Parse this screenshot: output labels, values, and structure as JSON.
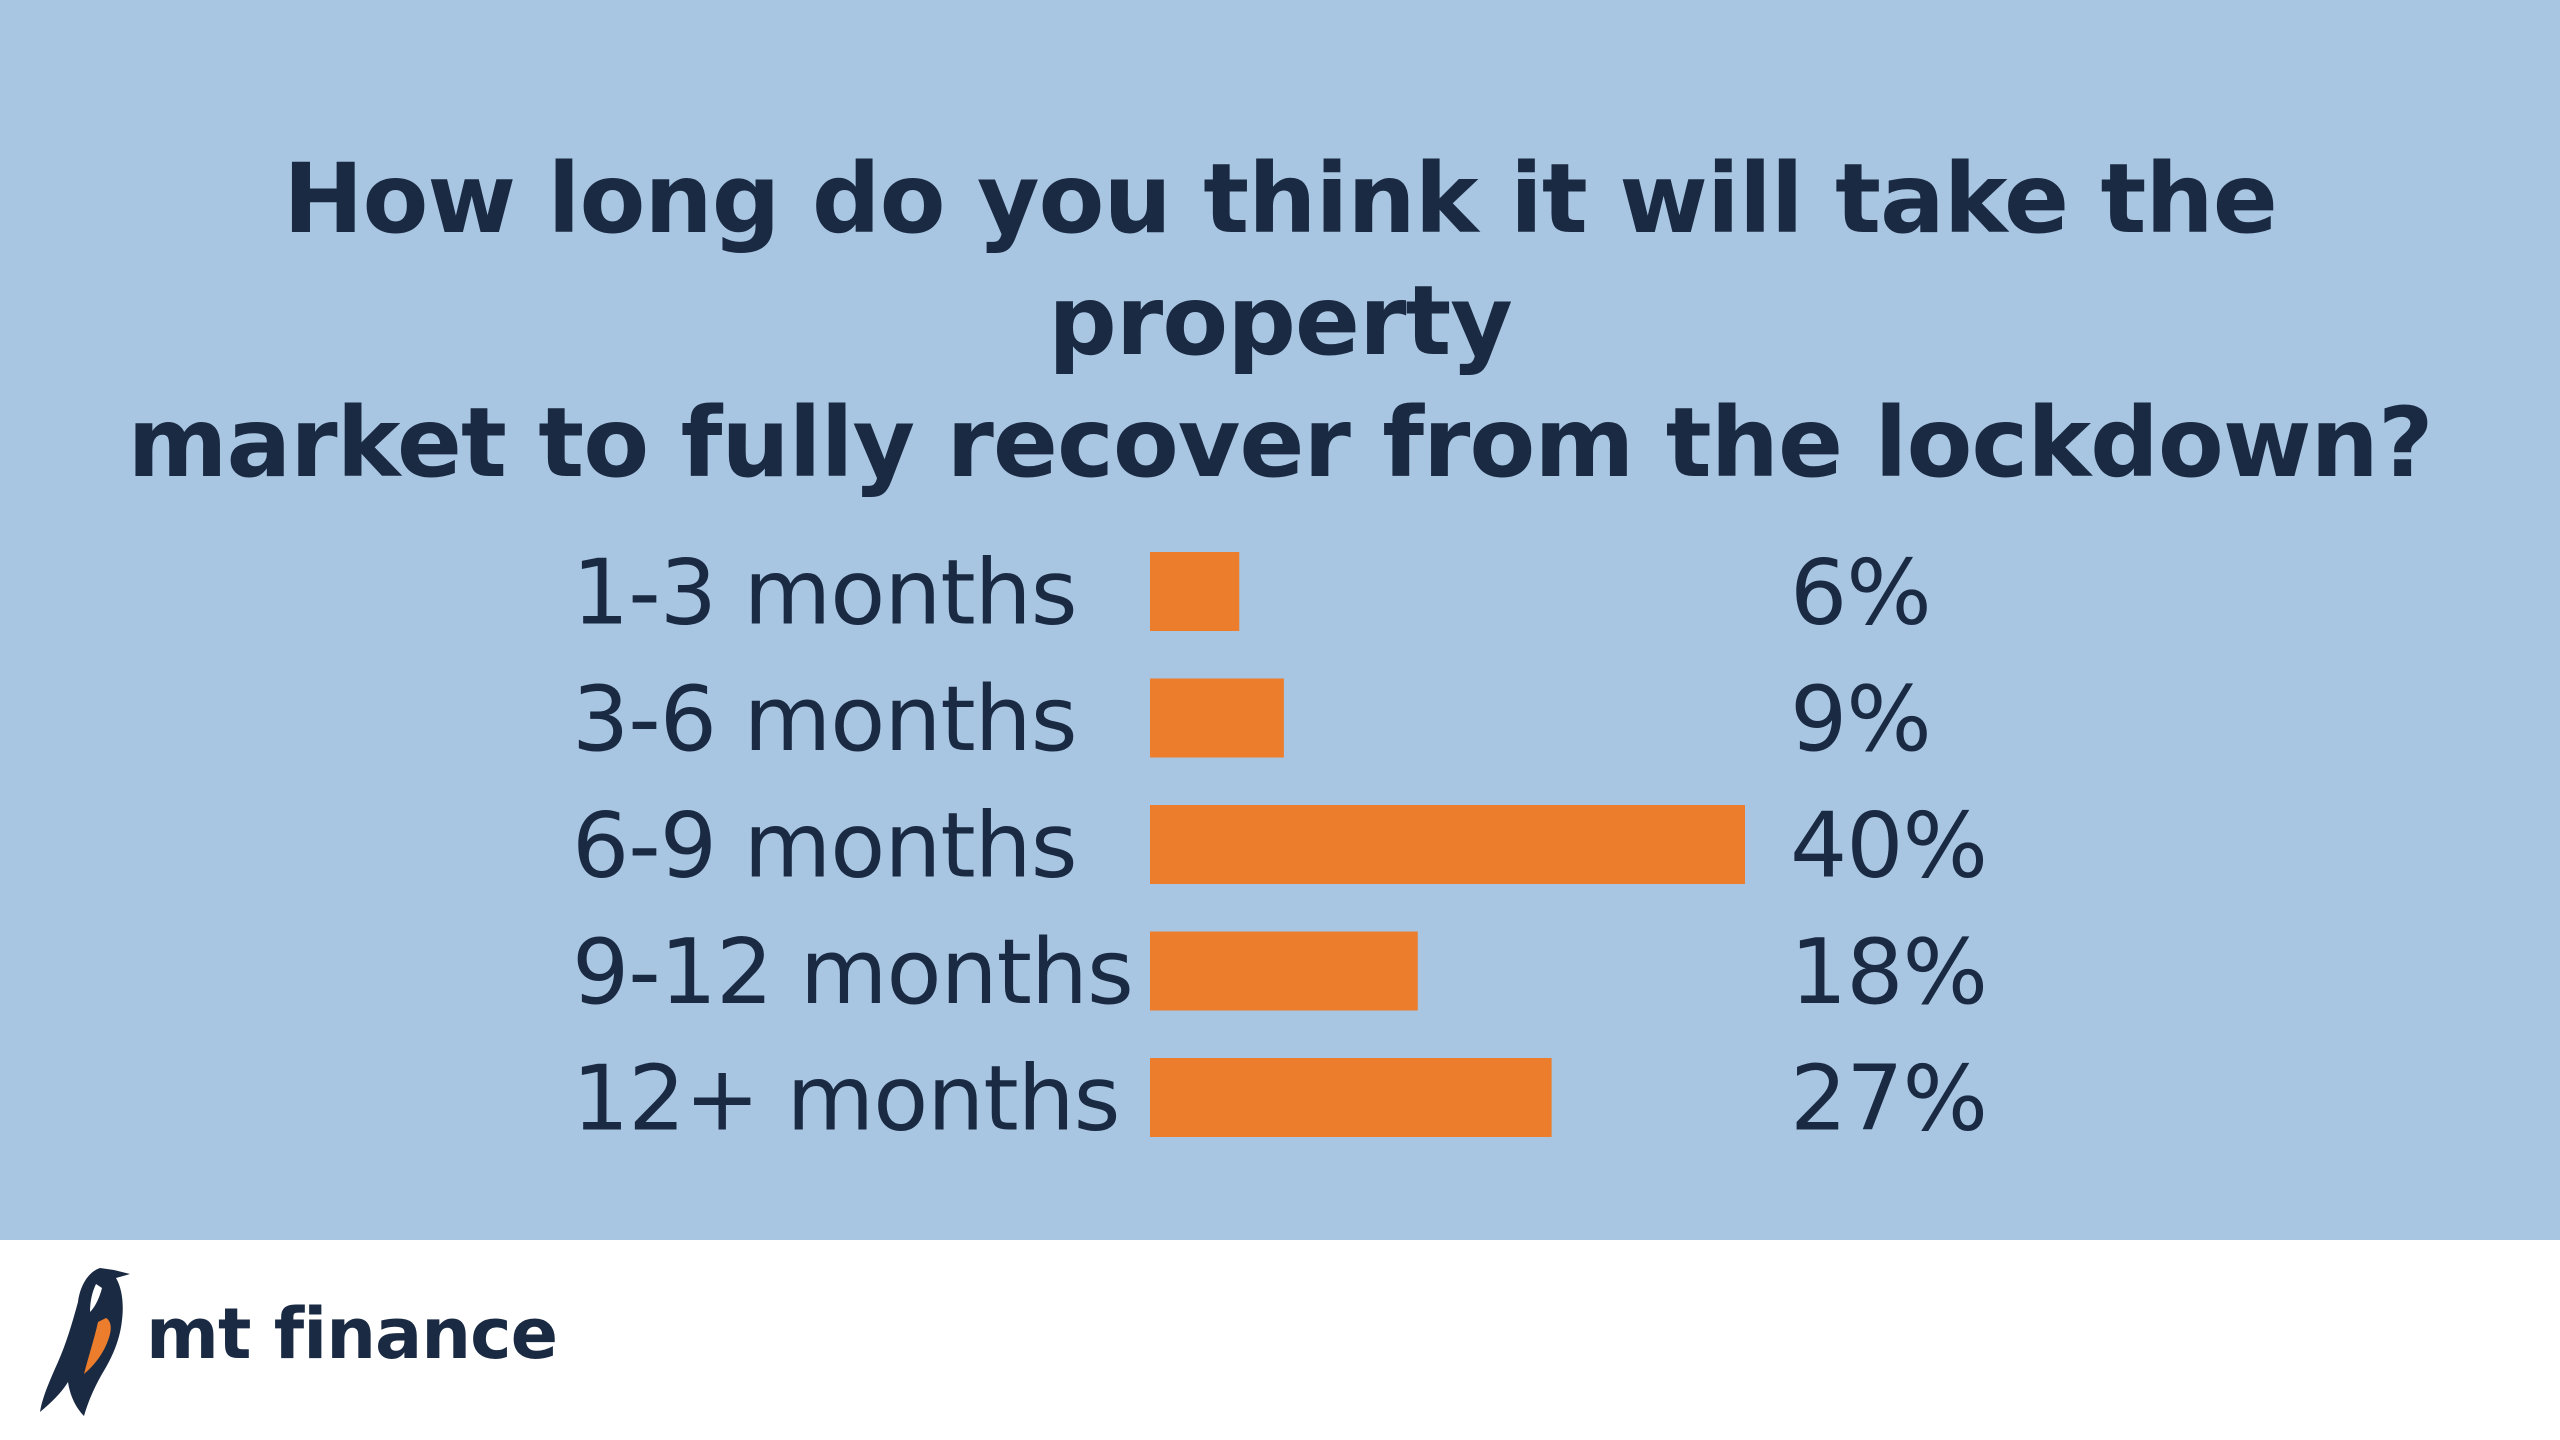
{
  "chart_data": {
    "type": "bar",
    "orientation": "horizontal",
    "title": "How long do you think it will take the property market to fully recover from the lockdown?",
    "title_lines": [
      "How long do you think it will take the property",
      "market to fully recover from the lockdown?"
    ],
    "categories": [
      "1-3 months",
      "3-6 months",
      "6-9 months",
      "9-12 months",
      "12+ months"
    ],
    "values": [
      6,
      9,
      40,
      18,
      27
    ],
    "value_labels": [
      "6%",
      "9%",
      "40%",
      "18%",
      "27%"
    ],
    "unit": "%",
    "xlim": [
      0,
      40
    ],
    "xlabel": "",
    "ylabel": "",
    "grid": false,
    "legend": "none",
    "bar_color": "#ec7d2c",
    "text_color": "#1a2a43",
    "background_color": "#a8c5e2"
  },
  "brand": {
    "name": "mt finance",
    "logo_icon": "penguin-icon",
    "accent_color": "#ec7d2c",
    "dark_color": "#1a2a43"
  }
}
